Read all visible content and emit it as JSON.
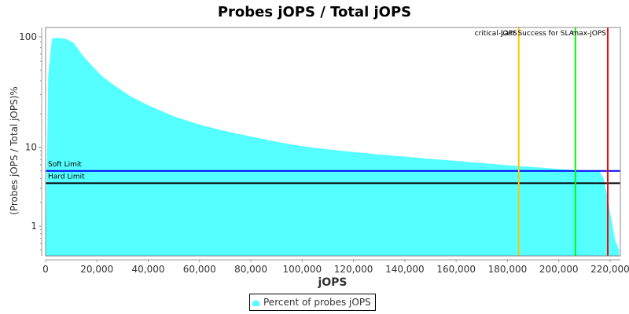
{
  "chart_data": {
    "type": "area",
    "title": "Probes jOPS / Total jOPS",
    "xlabel": "jOPS",
    "ylabel": "(Probes jOPS / Total jOPS)%",
    "xlim": [
      0,
      224000
    ],
    "ylim_log": [
      0.5,
      130
    ],
    "y_scale": "log",
    "x_ticks": [
      0,
      20000,
      40000,
      60000,
      80000,
      100000,
      120000,
      140000,
      160000,
      180000,
      200000,
      220000
    ],
    "x_tick_labels": [
      "0",
      "20,000",
      "40,000",
      "60,000",
      "80,000",
      "100,000",
      "120,000",
      "140,000",
      "160,000",
      "180,000",
      "200,000",
      "220,000"
    ],
    "y_ticks": [
      1,
      10,
      100
    ],
    "y_tick_labels": [
      "1",
      "10",
      "100"
    ],
    "grid": false,
    "legend_position": "bottom",
    "series": [
      {
        "name": "Percent of probes jOPS",
        "color": "#55ffff",
        "x": [
          0,
          1000,
          2500,
          5000,
          8000,
          11000,
          14000,
          18000,
          22000,
          27000,
          33000,
          40000,
          50000,
          60000,
          70000,
          80000,
          90000,
          100000,
          110000,
          120000,
          130000,
          140000,
          150000,
          160000,
          170000,
          180000,
          190000,
          200000,
          206000,
          210000,
          214000,
          216000,
          217500,
          219000,
          220500,
          222000,
          223500
        ],
        "values": [
          0.5,
          45,
          97,
          98,
          96,
          88,
          70,
          55,
          44,
          36,
          29,
          24,
          19,
          16,
          14,
          12.5,
          11.2,
          10.2,
          9.4,
          8.7,
          8.1,
          7.6,
          7.1,
          6.7,
          6.3,
          5.9,
          5.6,
          5.3,
          5.15,
          5.0,
          4.95,
          4.9,
          4.0,
          2.4,
          1.2,
          0.65,
          0.5
        ]
      }
    ],
    "horizontal_markers": [
      {
        "label": "Soft Limit",
        "value": 5.0,
        "color": "#0000ff"
      },
      {
        "label": "Hard Limit",
        "value": 3.5,
        "color": "#000000"
      }
    ],
    "vertical_markers": [
      {
        "label": "critical-jOPS",
        "value": 184400,
        "color": "#ffc800"
      },
      {
        "label": "Last Success for SLA",
        "value": 206500,
        "color": "#00ff00"
      },
      {
        "label": "max-jOPS",
        "value": 219100,
        "color": "#ff0000"
      }
    ]
  },
  "legend": {
    "items": [
      {
        "label": "Percent of probes jOPS",
        "color": "#55ffff",
        "icon": "area-series-icon"
      }
    ]
  }
}
